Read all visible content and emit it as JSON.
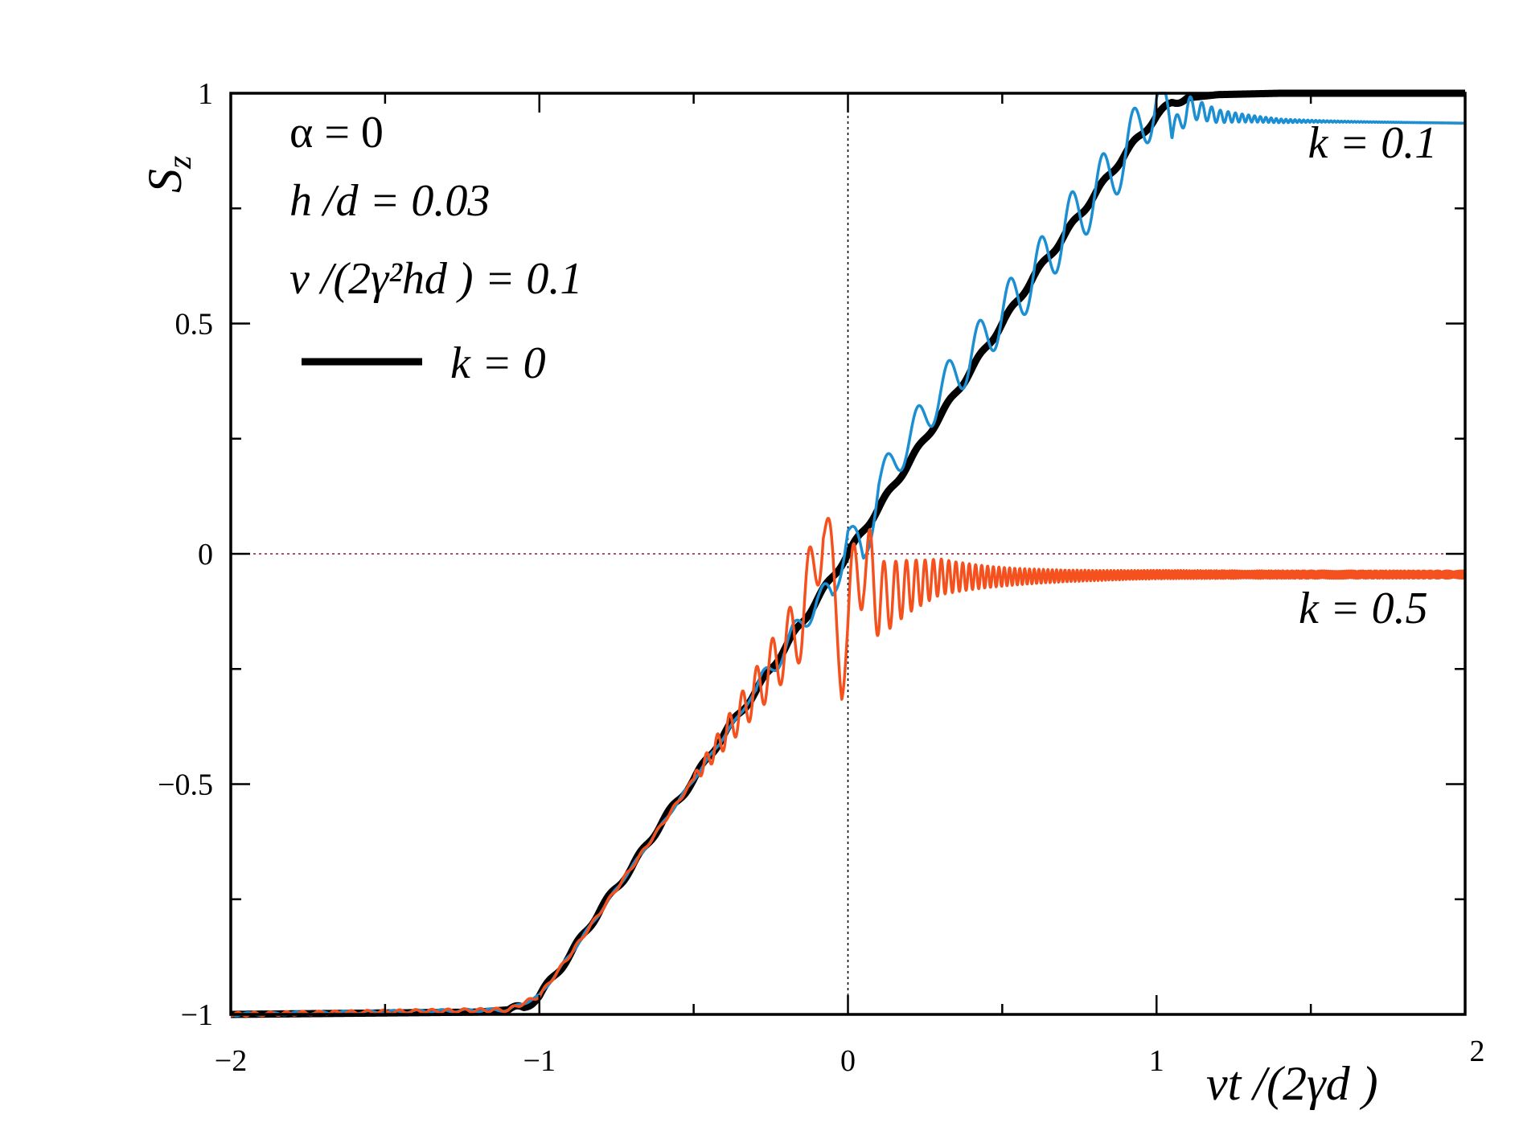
{
  "chart_data": {
    "type": "line",
    "xlabel": "vt /(2γd )",
    "ylabel": "S",
    "ylabel_sub": "z",
    "xlim": [
      -2,
      2
    ],
    "ylim": [
      -1,
      1
    ],
    "x_ticks": [
      -2,
      -1,
      0,
      1,
      2
    ],
    "x_tick_labels": [
      "−2",
      "−1",
      "0",
      "1",
      "2"
    ],
    "y_ticks": [
      -1,
      -0.5,
      0,
      0.5,
      1
    ],
    "y_tick_labels": [
      "−1",
      "−0.5",
      "0",
      "0.5",
      "1"
    ],
    "grid": false,
    "reference_lines": [
      {
        "orientation": "vertical",
        "value": 0,
        "color": "#000000"
      },
      {
        "orientation": "horizontal",
        "value": 0,
        "color": "#8b1c3c"
      }
    ],
    "parameters": [
      "α = 0",
      "h /d  = 0.03",
      "v /(2γ²hd ) = 0.1"
    ],
    "legend": {
      "placement": "top-left",
      "entries": [
        {
          "label": "k  = 0",
          "color": "#000000"
        }
      ]
    },
    "series": [
      {
        "label": "k  = 0",
        "color": "#000000",
        "points": [
          [
            -2,
            -1
          ],
          [
            -1.2,
            -0.995
          ],
          [
            -1.1,
            -0.99
          ],
          [
            -1.05,
            -0.985
          ],
          [
            -1,
            -0.96
          ],
          [
            -0.95,
            -0.915
          ],
          [
            -0.9,
            -0.87
          ],
          [
            -0.8,
            -0.77
          ],
          [
            -0.7,
            -0.68
          ],
          [
            -0.6,
            -0.58
          ],
          [
            -0.5,
            -0.49
          ],
          [
            -0.4,
            -0.39
          ],
          [
            -0.3,
            -0.3
          ],
          [
            -0.2,
            -0.2
          ],
          [
            -0.1,
            -0.1
          ],
          [
            0,
            0
          ],
          [
            0.1,
            0.1
          ],
          [
            0.2,
            0.2
          ],
          [
            0.3,
            0.3
          ],
          [
            0.4,
            0.4
          ],
          [
            0.5,
            0.5
          ],
          [
            0.6,
            0.6
          ],
          [
            0.7,
            0.69
          ],
          [
            0.8,
            0.78
          ],
          [
            0.9,
            0.87
          ],
          [
            1,
            0.95
          ],
          [
            1.05,
            0.98
          ],
          [
            1.1,
            0.99
          ],
          [
            1.2,
            0.997
          ],
          [
            1.4,
            1
          ],
          [
            2,
            1
          ]
        ]
      },
      {
        "label": "k  = 0.1",
        "color": "#1b8fd2",
        "points": [
          [
            -2,
            -1
          ],
          [
            -1.1,
            -0.99
          ],
          [
            -1,
            -0.96
          ],
          [
            -0.9,
            -0.87
          ],
          [
            -0.7,
            -0.68
          ],
          [
            -0.5,
            -0.49
          ],
          [
            -0.3,
            -0.3
          ],
          [
            -0.1,
            -0.1
          ],
          [
            -0.05,
            -0.09
          ],
          [
            0,
            0.05
          ],
          [
            0.05,
            -0.01
          ],
          [
            0.1,
            0.15
          ],
          [
            0.2,
            0.25
          ],
          [
            0.3,
            0.35
          ],
          [
            0.4,
            0.43
          ],
          [
            0.5,
            0.52
          ],
          [
            0.6,
            0.6
          ],
          [
            0.7,
            0.7
          ],
          [
            0.8,
            0.78
          ],
          [
            0.9,
            0.87
          ],
          [
            1,
            0.99
          ],
          [
            1.05,
            0.9
          ],
          [
            1.1,
            0.97
          ],
          [
            1.2,
            0.95
          ],
          [
            1.4,
            0.94
          ],
          [
            2,
            0.935
          ]
        ]
      },
      {
        "label": "k  = 0.5",
        "color": "#f4511e",
        "points": [
          [
            -2,
            -1
          ],
          [
            -1.1,
            -0.99
          ],
          [
            -1,
            -0.96
          ],
          [
            -0.9,
            -0.87
          ],
          [
            -0.7,
            -0.68
          ],
          [
            -0.5,
            -0.49
          ],
          [
            -0.3,
            -0.3
          ],
          [
            -0.2,
            -0.2
          ],
          [
            -0.15,
            -0.15
          ],
          [
            -0.08,
            0.07
          ],
          [
            -0.02,
            -0.21
          ],
          [
            0.05,
            0
          ],
          [
            0.1,
            -0.1
          ],
          [
            0.2,
            -0.07
          ],
          [
            0.3,
            -0.05
          ],
          [
            0.5,
            -0.05
          ],
          [
            1,
            -0.045
          ],
          [
            2,
            -0.045
          ]
        ]
      }
    ],
    "annotations": [
      {
        "text": "k  = 0.1",
        "x": 1.7,
        "y": 0.86
      },
      {
        "text": "k  = 0.5",
        "x": 1.67,
        "y": -0.15
      }
    ]
  }
}
